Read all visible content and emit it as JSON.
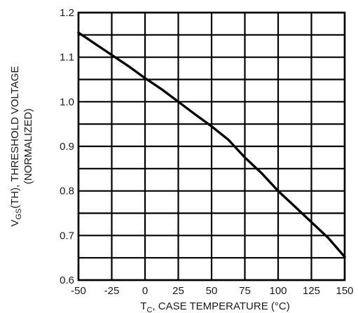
{
  "chart_data": {
    "type": "line",
    "title": "",
    "xlabel": {
      "main": "T",
      "subscript": "C",
      "rest": ", CASE TEMPERATURE (°C)"
    },
    "ylabel": {
      "line1_main": "V",
      "line1_subscript": "GS",
      "line1_rest": "(TH), THRESHOLD  VOLTAGE",
      "line2": "(NORMALIZED)"
    },
    "xlim": [
      -50,
      150
    ],
    "ylim": [
      0.6,
      1.2
    ],
    "x_ticks": [
      -50,
      -25,
      0,
      25,
      50,
      75,
      100,
      125,
      150
    ],
    "x_tick_labels": [
      "-50",
      "-25",
      "0",
      "25",
      "50",
      "75",
      "100",
      "125",
      "150"
    ],
    "y_ticks": [
      0.6,
      0.7,
      0.8,
      0.9,
      1.0,
      1.1,
      1.2
    ],
    "y_tick_labels": [
      "0.6",
      "0.7",
      "0.8",
      "0.9",
      "1.0",
      "1.1",
      "1.2"
    ],
    "y_minor_ticks": [
      0.65,
      0.75,
      0.85,
      0.95,
      1.05,
      1.15
    ],
    "grid": true,
    "series": [
      {
        "x": [
          -50,
          -37.5,
          -25,
          -12.5,
          0,
          12.5,
          25,
          37.5,
          50,
          62.5,
          75,
          87.5,
          100,
          112.5,
          125,
          137.5,
          150
        ],
        "y": [
          1.155,
          1.13,
          1.105,
          1.08,
          1.053,
          1.028,
          1.0,
          0.972,
          0.945,
          0.915,
          0.875,
          0.84,
          0.8,
          0.765,
          0.73,
          0.695,
          0.652
        ]
      }
    ],
    "colors": {
      "grid": "#000000",
      "line": "#000000",
      "text": "#1a1a1a"
    }
  }
}
